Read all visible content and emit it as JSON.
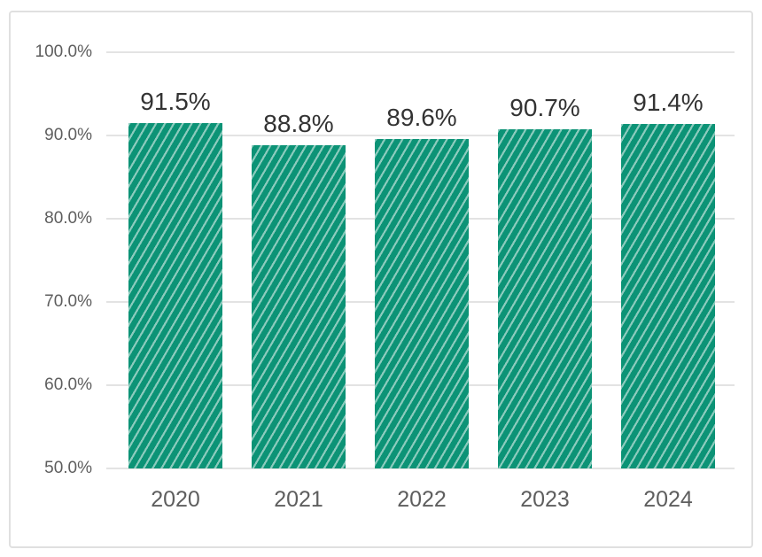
{
  "page": {
    "background_color": "#ffffff"
  },
  "card": {
    "border_color": "#e0e0e0",
    "background_color": "#ffffff"
  },
  "chart_data": {
    "type": "bar",
    "categories": [
      "2020",
      "2021",
      "2022",
      "2023",
      "2024"
    ],
    "values": [
      91.5,
      88.8,
      89.6,
      90.7,
      91.4
    ],
    "data_labels": [
      "91.5%",
      "88.8%",
      "89.6%",
      "90.7%",
      "91.4%"
    ],
    "y_ticks": [
      {
        "value": 100,
        "label": "100.0%"
      },
      {
        "value": 90,
        "label": "90.0%"
      },
      {
        "value": 80,
        "label": "80.0%"
      },
      {
        "value": 70,
        "label": "70.0%"
      },
      {
        "value": 60,
        "label": "60.0%"
      },
      {
        "value": 50,
        "label": "50.0%"
      }
    ],
    "ylim": [
      50,
      100
    ],
    "grid": "horizontal",
    "legend": "none",
    "bar_fill_color": "#0c9376",
    "bar_hatch": "diagonal-forward-stripes",
    "bar_hatch_stripe_color": "#8fccbf",
    "gridline_color": "#e3e3e3",
    "axis_tick_color": "#5e5e5e",
    "data_label_color": "#333333"
  }
}
